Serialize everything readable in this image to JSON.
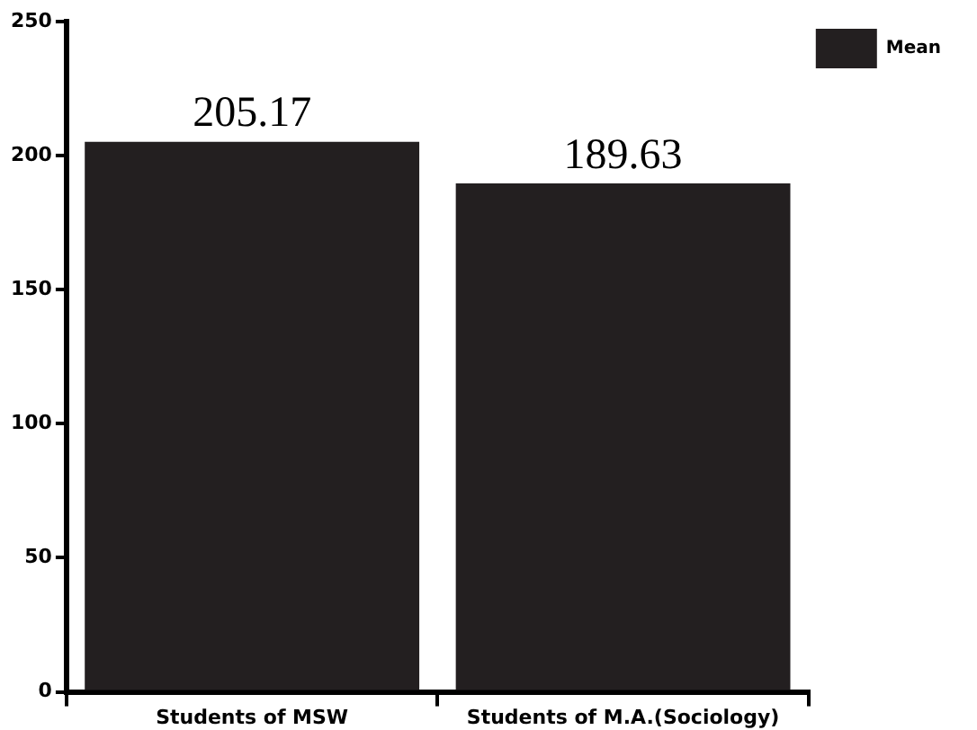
{
  "chart_data": {
    "type": "bar",
    "categories": [
      "Students of MSW",
      "Students of M.A.(Sociology)"
    ],
    "series": [
      {
        "name": "Mean",
        "color": "#231f20",
        "values": [
          205.17,
          189.63
        ]
      }
    ],
    "ylim": [
      0,
      250
    ],
    "yticks": [
      0,
      50,
      100,
      150,
      200,
      250
    ],
    "grid": false,
    "legend": "top right",
    "data_labels": true
  }
}
